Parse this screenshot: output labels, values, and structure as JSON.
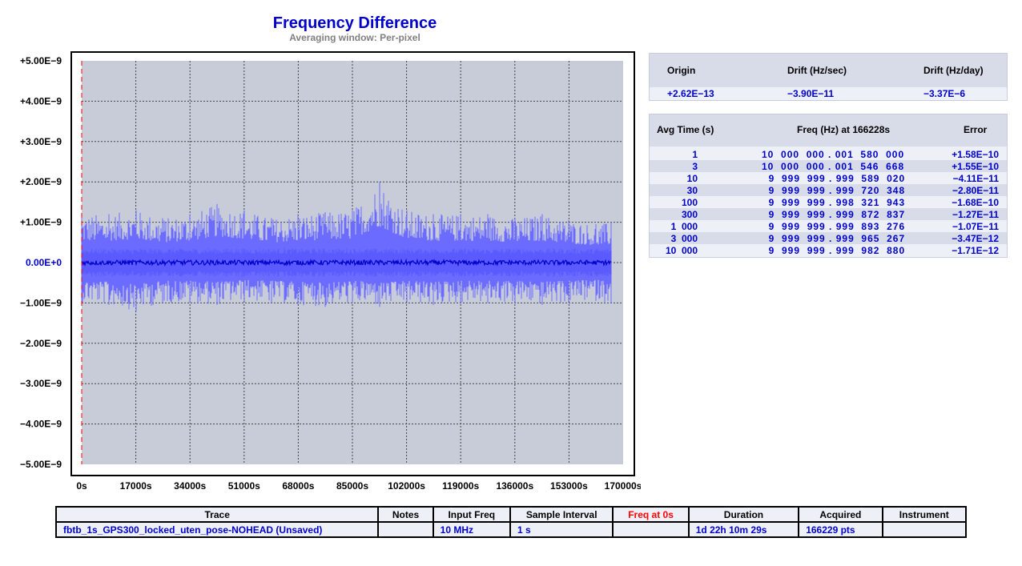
{
  "header": {
    "title": "Frequency Difference",
    "subtitle": "Averaging window: Per-pixel"
  },
  "colors": {
    "plot_bg": "#c8ccd8",
    "trace_light": "#6b6bff",
    "trace_dark": "#0000cc",
    "cursor": "#ff0000",
    "zero_label": "#0000cc"
  },
  "chart_data": {
    "type": "line",
    "title": "Frequency Difference",
    "subtitle": "Averaging window: Per-pixel",
    "xlabel": "",
    "ylabel": "",
    "xlim": [
      0,
      170000
    ],
    "ylim": [
      -5e-09,
      5e-09
    ],
    "x_tick_values": [
      0,
      17000,
      34000,
      51000,
      68000,
      85000,
      102000,
      119000,
      136000,
      153000,
      170000
    ],
    "x_tick_labels": [
      "0s",
      "17000s",
      "34000s",
      "51000s",
      "68000s",
      "85000s",
      "102000s",
      "119000s",
      "136000s",
      "153000s",
      "170000s"
    ],
    "y_tick_values": [
      5e-09,
      4e-09,
      3e-09,
      2e-09,
      1e-09,
      0,
      -1e-09,
      -2e-09,
      -3e-09,
      -4e-09,
      -5e-09
    ],
    "y_tick_labels": [
      "+5.00E−9",
      "+4.00E−9",
      "+3.00E−9",
      "+2.00E−9",
      "+1.00E−9",
      "0.00E+0",
      "−1.00E−9",
      "−2.00E−9",
      "−3.00E−9",
      "−4.00E−9",
      "−5.00E−9"
    ],
    "grid": true,
    "data_end_s": 166228,
    "cursor_x": 0,
    "series": [
      {
        "role": "envelope",
        "color": "#6b6bff",
        "x": [
          0,
          8500,
          17000,
          25500,
          34000,
          42500,
          51000,
          59500,
          68000,
          76500,
          85000,
          93500,
          102000,
          110500,
          119000,
          127500,
          136000,
          144500,
          153000,
          161500,
          166228
        ],
        "max": [
          1.2e-09,
          1.2e-09,
          1.3e-09,
          1.1e-09,
          1.2e-09,
          1.45e-09,
          1.3e-09,
          1.1e-09,
          1.2e-09,
          1.25e-09,
          1.3e-09,
          2e-09,
          1.3e-09,
          1.2e-09,
          1.2e-09,
          1.2e-09,
          1.1e-09,
          1.2e-09,
          1.05e-09,
          9.5e-10,
          1e-09
        ],
        "min": [
          -1e-09,
          -1.05e-09,
          -1.2e-09,
          -1e-09,
          -1e-09,
          -1.05e-09,
          -9.5e-10,
          -1e-09,
          -1.05e-09,
          -1.1e-09,
          -1e-09,
          -1.1e-09,
          -1e-09,
          -1.05e-09,
          -1e-09,
          -1e-09,
          -1e-09,
          -1.05e-09,
          -1e-09,
          -9.5e-10,
          -1e-09
        ]
      },
      {
        "role": "average",
        "color": "#0000cc",
        "x": [
          0,
          166228
        ],
        "y": [
          0,
          0
        ]
      }
    ]
  },
  "drift": {
    "headers": [
      "Origin",
      "Drift (Hz/sec)",
      "Drift (Hz/day)"
    ],
    "values": [
      "+2.62E−13",
      "−3.90E−11",
      "−3.37E−6"
    ]
  },
  "avg_table": {
    "headers": [
      "Avg Time (s)",
      "Freq (Hz) at 166228s",
      "Error"
    ],
    "rows": [
      {
        "tau": "1",
        "freq": "10  000  000 . 001  580  000",
        "err": "+1.58E−10"
      },
      {
        "tau": "3",
        "freq": "10  000  000 . 001  546  668",
        "err": "+1.55E−10"
      },
      {
        "tau": "10",
        "freq": "  9  999  999 . 999  589  020",
        "err": "−4.11E−11"
      },
      {
        "tau": "30",
        "freq": "  9  999  999 . 999  720  348",
        "err": "−2.80E−11"
      },
      {
        "tau": "100",
        "freq": "  9  999  999 . 998  321  943",
        "err": "−1.68E−10"
      },
      {
        "tau": "300",
        "freq": "  9  999  999 . 999  872  837",
        "err": "−1.27E−11"
      },
      {
        "tau": "1  000",
        "freq": "  9  999  999 . 999  893  276",
        "err": "−1.07E−11"
      },
      {
        "tau": "3  000",
        "freq": "  9  999  999 . 999  965  267",
        "err": "−3.47E−12"
      },
      {
        "tau": "10  000",
        "freq": "  9  999  999 . 999  982  880",
        "err": "−1.71E−12"
      }
    ]
  },
  "trace_table": {
    "headers": [
      "Trace",
      "Notes",
      "Input Freq",
      "Sample Interval",
      "Freq at 0s",
      "Duration",
      "Acquired",
      "Instrument"
    ],
    "row": [
      "fbtb_1s_GPS300_locked_uten_pose-NOHEAD  (Unsaved)",
      "",
      "10 MHz",
      "1 s",
      "",
      "1d 22h 10m 29s",
      "166229 pts",
      ""
    ]
  }
}
